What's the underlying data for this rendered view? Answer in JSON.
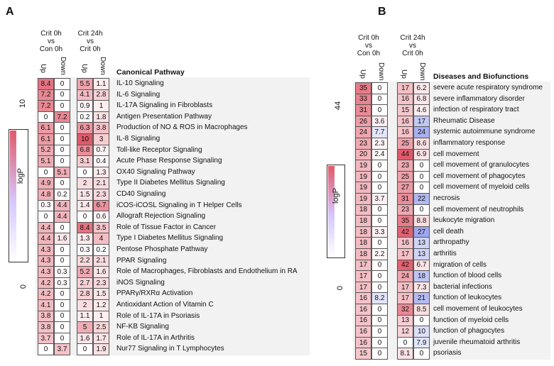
{
  "panel_a": {
    "letter": "A",
    "group1_title": [
      "Crit 0h",
      "vs",
      "Con 0h"
    ],
    "group2_title": [
      "Crit 24h",
      "vs",
      "Crit 0h"
    ],
    "sub_up": "Up",
    "sub_down": "Down",
    "header": "Canonical Pathway",
    "scale": {
      "label": "logP",
      "max": "10",
      "min": "0"
    },
    "rows": [
      {
        "name": "IL-10 Signaling",
        "v": [
          "8.4",
          "0",
          "5.5",
          "1.1"
        ]
      },
      {
        "name": "IL-6 Signaling",
        "v": [
          "7.2",
          "0",
          "4.1",
          "2.8"
        ]
      },
      {
        "name": "IL-17A Signaling in Fibroblasts",
        "v": [
          "7.2",
          "0",
          "0.9",
          "1"
        ]
      },
      {
        "name": "Antigen Presentation Pathway",
        "v": [
          "0",
          "7.2",
          "0.2",
          "1.8"
        ]
      },
      {
        "name": "Production of NO & ROS in Macrophages",
        "v": [
          "6.1",
          "0",
          "6.3",
          "3.8"
        ]
      },
      {
        "name": "IL-8 Signaling",
        "v": [
          "6.1",
          "0",
          "10",
          "3"
        ]
      },
      {
        "name": "Toll-like Receptor Signaling",
        "v": [
          "5.2",
          "0",
          "6.8",
          "0.7"
        ]
      },
      {
        "name": "Acute Phase Response Signaling",
        "v": [
          "5.1",
          "0",
          "3.1",
          "0.4"
        ]
      },
      {
        "name": "OX40 Signaling Pathway",
        "v": [
          "0",
          "5.1",
          "0",
          "1.3"
        ]
      },
      {
        "name": "Type II Diabetes Mellitus Signaling",
        "v": [
          "4.9",
          "0",
          "2",
          "2.1"
        ]
      },
      {
        "name": "CD40 Signaling",
        "v": [
          "4.8",
          "0.2",
          "1.5",
          "2.3"
        ]
      },
      {
        "name": "iCOS-iCOSL Signaling in T Helper Cells",
        "v": [
          "0.3",
          "4.4",
          "1.4",
          "6.7"
        ]
      },
      {
        "name": "Allograft Rejection Signaling",
        "v": [
          "0",
          "4.4",
          "0",
          "0.6"
        ]
      },
      {
        "name": "Role of Tissue Factor in Cancer",
        "v": [
          "4.4",
          "0",
          "8.4",
          "3.5"
        ]
      },
      {
        "name": "Type I Diabetes Mellitus Signaling",
        "v": [
          "4.4",
          "1.6",
          "1.3",
          "4"
        ]
      },
      {
        "name": "Pentose Phosphate Pathway",
        "v": [
          "4.3",
          "0",
          "0.3",
          "0.2"
        ]
      },
      {
        "name": "PPAR Signaling",
        "v": [
          "4.3",
          "0",
          "2.2",
          "2.1"
        ]
      },
      {
        "name": "Role of Macrophages, Fibroblasts and Endothelium in RA",
        "v": [
          "4.3",
          "0.3",
          "5.2",
          "1.6"
        ]
      },
      {
        "name": "iNOS Signaling",
        "v": [
          "4.2",
          "0.3",
          "2.7",
          "2.3"
        ]
      },
      {
        "name": "PPARγ/RXRα Activation",
        "v": [
          "4.2",
          "0",
          "2.8",
          "1.5"
        ]
      },
      {
        "name": "Antioxidant Action of Vitamin C",
        "v": [
          "4.1",
          "0",
          "2",
          "1.2"
        ]
      },
      {
        "name": "Role of IL-17A in Psoriasis",
        "v": [
          "3.8",
          "0",
          "1.1",
          "1"
        ]
      },
      {
        "name": "NF-KB Signaling",
        "v": [
          "3.8",
          "0",
          "5",
          "2.5"
        ]
      },
      {
        "name": "Role of IL-17A in Arthritis",
        "v": [
          "3.7",
          "0",
          "1.6",
          "1.7"
        ]
      },
      {
        "name": "Nur77 Signaling in T Lymphocytes",
        "v": [
          "0",
          "3.7",
          "0",
          "1.9"
        ]
      }
    ]
  },
  "panel_b": {
    "letter": "B",
    "group1_title": [
      "Crit 0h",
      "vs",
      "Con 0h"
    ],
    "group2_title": [
      "Crit 24h",
      "vs",
      "Crit 0h"
    ],
    "sub_up": "Up",
    "sub_down": "Down",
    "header": "Diseases and Biofunctions",
    "scale": {
      "label": "logP",
      "max": "44",
      "min": "0"
    },
    "rows": [
      {
        "name": "severe acute respiratory syndrome",
        "v": [
          "35",
          "0",
          "17",
          "6.2"
        ],
        "blue": [
          false,
          false,
          false,
          false
        ]
      },
      {
        "name": "severe inflammatory disorder",
        "v": [
          "33",
          "0",
          "16",
          "6.8"
        ],
        "blue": [
          false,
          false,
          false,
          false
        ]
      },
      {
        "name": "infection of respiratory tract",
        "v": [
          "31",
          "0",
          "15",
          "4.6"
        ],
        "blue": [
          false,
          false,
          false,
          false
        ]
      },
      {
        "name": "Rheumatic Disease",
        "v": [
          "26",
          "3.6",
          "16",
          "17"
        ],
        "blue": [
          false,
          false,
          false,
          true
        ]
      },
      {
        "name": "systemic autoimmune syndrome",
        "v": [
          "24",
          "7.7",
          "16",
          "24"
        ],
        "blue": [
          false,
          true,
          false,
          true
        ]
      },
      {
        "name": "inflammatory response",
        "v": [
          "23",
          "2.3",
          "25",
          "8.6"
        ],
        "blue": [
          false,
          false,
          false,
          false
        ]
      },
      {
        "name": "cell movement",
        "v": [
          "20",
          "2.4",
          "44",
          "6.9"
        ],
        "blue": [
          false,
          false,
          false,
          false
        ]
      },
      {
        "name": "cell movement of granulocytes",
        "v": [
          "19",
          "0",
          "23",
          "0"
        ],
        "blue": [
          false,
          false,
          false,
          false
        ]
      },
      {
        "name": "cell movement of phagocytes",
        "v": [
          "19",
          "0",
          "25",
          "0"
        ],
        "blue": [
          false,
          false,
          false,
          false
        ]
      },
      {
        "name": "cell movement of myeloid cells",
        "v": [
          "19",
          "0",
          "27",
          "0"
        ],
        "blue": [
          false,
          false,
          false,
          false
        ]
      },
      {
        "name": "necrosis",
        "v": [
          "19",
          "3.7",
          "31",
          "22"
        ],
        "blue": [
          false,
          false,
          false,
          true
        ]
      },
      {
        "name": "cell movement of neutrophils",
        "v": [
          "18",
          "0",
          "23",
          "0"
        ],
        "blue": [
          false,
          false,
          false,
          false
        ]
      },
      {
        "name": "leukocyte migration",
        "v": [
          "18",
          "0",
          "35",
          "8.8"
        ],
        "blue": [
          false,
          false,
          false,
          false
        ]
      },
      {
        "name": "cell death",
        "v": [
          "18",
          "3.3",
          "42",
          "27"
        ],
        "blue": [
          false,
          false,
          false,
          true
        ]
      },
      {
        "name": "arthropathy",
        "v": [
          "18",
          "0",
          "16",
          "13"
        ],
        "blue": [
          false,
          false,
          false,
          true
        ]
      },
      {
        "name": "arthritis",
        "v": [
          "18",
          "2.2",
          "17",
          "13"
        ],
        "blue": [
          false,
          false,
          false,
          true
        ]
      },
      {
        "name": "migration of cells",
        "v": [
          "17",
          "0",
          "42",
          "6.7"
        ],
        "blue": [
          false,
          false,
          false,
          false
        ]
      },
      {
        "name": "function of blood cells",
        "v": [
          "17",
          "0",
          "24",
          "18"
        ],
        "blue": [
          false,
          false,
          false,
          true
        ]
      },
      {
        "name": "bacterial infections",
        "v": [
          "17",
          "0",
          "17",
          "7.3"
        ],
        "blue": [
          false,
          false,
          false,
          false
        ]
      },
      {
        "name": "function of leukocytes",
        "v": [
          "16",
          "8.2",
          "17",
          "21"
        ],
        "blue": [
          false,
          true,
          false,
          true
        ]
      },
      {
        "name": "cell movement of leukocytes",
        "v": [
          "16",
          "0",
          "32",
          "8.5"
        ],
        "blue": [
          false,
          false,
          false,
          false
        ]
      },
      {
        "name": "function of myeloid cells",
        "v": [
          "16",
          "0",
          "13",
          "0"
        ],
        "blue": [
          false,
          false,
          false,
          false
        ]
      },
      {
        "name": "function of phagocytes",
        "v": [
          "16",
          "0",
          "12",
          "10"
        ],
        "blue": [
          false,
          false,
          false,
          true
        ]
      },
      {
        "name": "juvenile rheumatoid arthritis",
        "v": [
          "16",
          "0",
          "0",
          "7.9"
        ],
        "blue": [
          false,
          false,
          false,
          true
        ]
      },
      {
        "name": "psoriasis",
        "v": [
          "15",
          "0",
          "8.1",
          "0"
        ],
        "blue": [
          false,
          false,
          false,
          false
        ]
      }
    ]
  },
  "colors": {
    "red": "#e05a6a",
    "blue": "#6f7fe6",
    "border": "#555555",
    "strip": "#f2f2f2"
  }
}
